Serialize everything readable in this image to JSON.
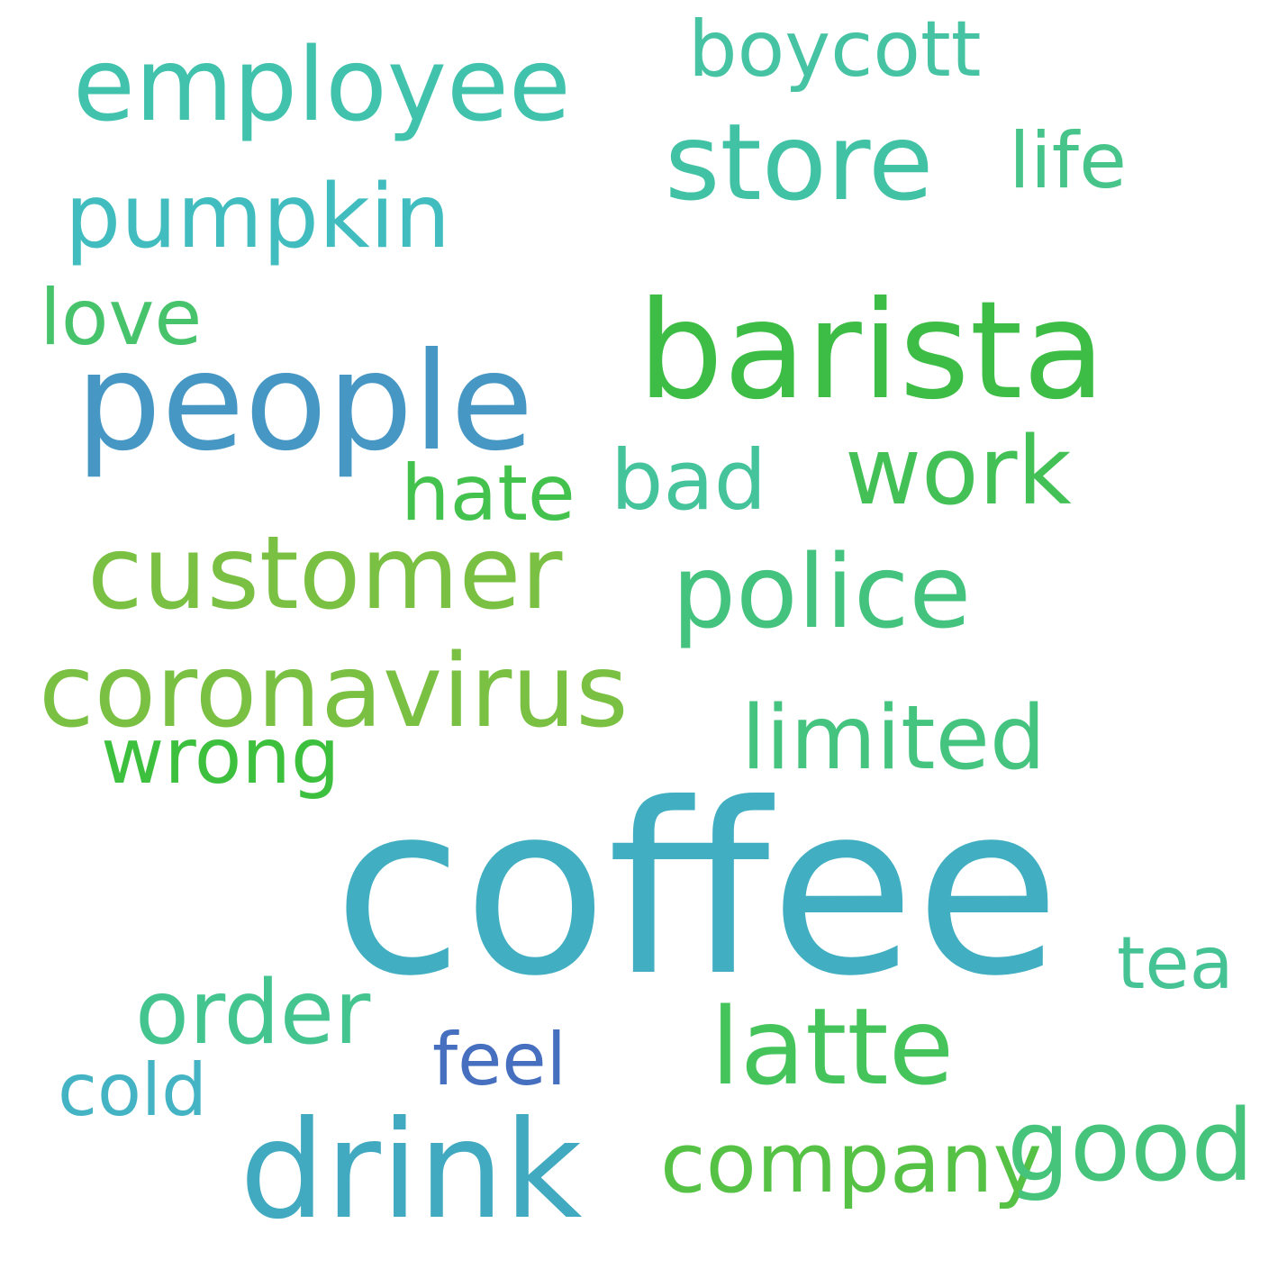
{
  "background_color": "#ffffff",
  "words": {
    "coffee": {
      "text": "coffee",
      "color": "#41aec1"
    },
    "barista": {
      "text": "barista",
      "color": "#3dbd45"
    },
    "people": {
      "text": "people",
      "color": "#4697c4"
    },
    "drink": {
      "text": "drink",
      "color": "#41aac0"
    },
    "customer": {
      "text": "customer",
      "color": "#7ac043"
    },
    "store": {
      "text": "store",
      "color": "#41c2a5"
    },
    "employee": {
      "text": "employee",
      "color": "#41c2ad"
    },
    "coronavirus": {
      "text": "coronavirus",
      "color": "#7ac043"
    },
    "police": {
      "text": "police",
      "color": "#44c37f"
    },
    "work": {
      "text": "work",
      "color": "#43c157"
    },
    "latte": {
      "text": "latte",
      "color": "#45c45c"
    },
    "pumpkin": {
      "text": "pumpkin",
      "color": "#41bdbf"
    },
    "limited": {
      "text": "limited",
      "color": "#45c480"
    },
    "order": {
      "text": "order",
      "color": "#44c48f"
    },
    "company": {
      "text": "company",
      "color": "#55c245"
    },
    "good": {
      "text": "good",
      "color": "#46c47b"
    },
    "boycott": {
      "text": "boycott",
      "color": "#45c3a2"
    },
    "life": {
      "text": "life",
      "color": "#47c48a"
    },
    "love": {
      "text": "love",
      "color": "#47c36c"
    },
    "hate": {
      "text": "hate",
      "color": "#44c24e"
    },
    "bad": {
      "text": "bad",
      "color": "#45c39b"
    },
    "wrong": {
      "text": "wrong",
      "color": "#3ec03f"
    },
    "tea": {
      "text": "tea",
      "color": "#46c394"
    },
    "feel": {
      "text": "feel",
      "color": "#4670bf"
    },
    "cold": {
      "text": "cold",
      "color": "#44b3c4"
    }
  }
}
